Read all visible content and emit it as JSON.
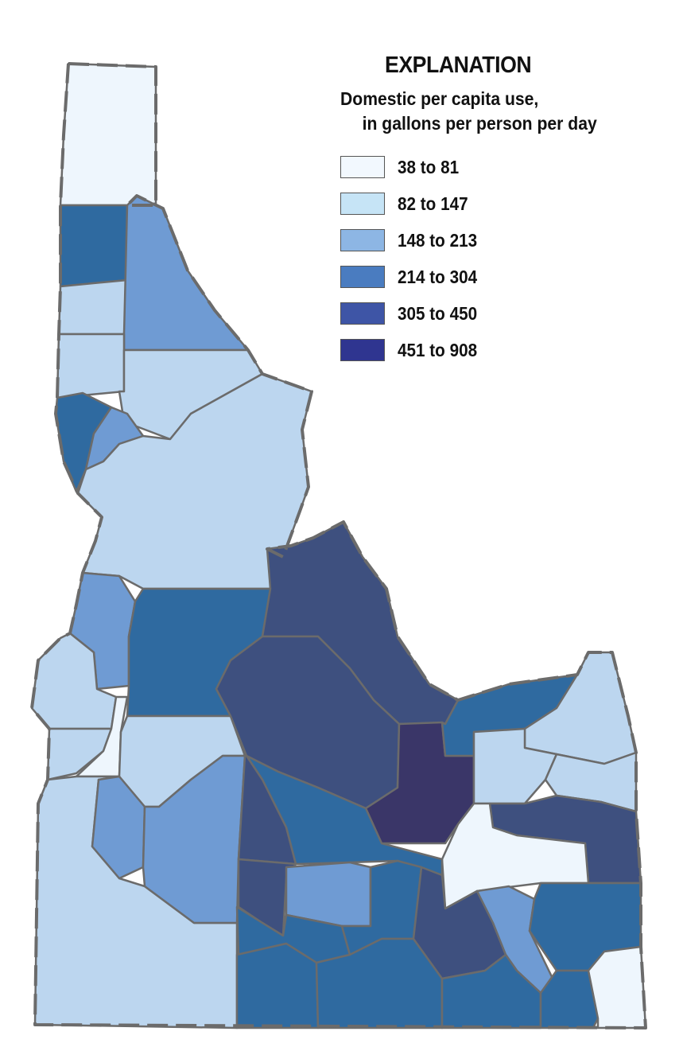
{
  "legend": {
    "title": "EXPLANATION",
    "subtitle_line1": "Domestic per capita use,",
    "subtitle_line2": "in gallons per person per day",
    "classes": [
      {
        "label": "38 to 81",
        "color": "#f2f8fe"
      },
      {
        "label": "82 to 147",
        "color": "#c6e4f6"
      },
      {
        "label": "148 to 213",
        "color": "#8db6e4"
      },
      {
        "label": "214 to 304",
        "color": "#4a7cc0"
      },
      {
        "label": "305 to 450",
        "color": "#3e55a6"
      },
      {
        "label": "451 to 908",
        "color": "#2f3590"
      }
    ]
  },
  "map_colors": {
    "class1": "#eef6fd",
    "class2": "#bcd6ef",
    "class3": "#6f9bd3",
    "class4": "#2f6aa0",
    "class5": "#3e507f",
    "class6": "#3a3668"
  }
}
